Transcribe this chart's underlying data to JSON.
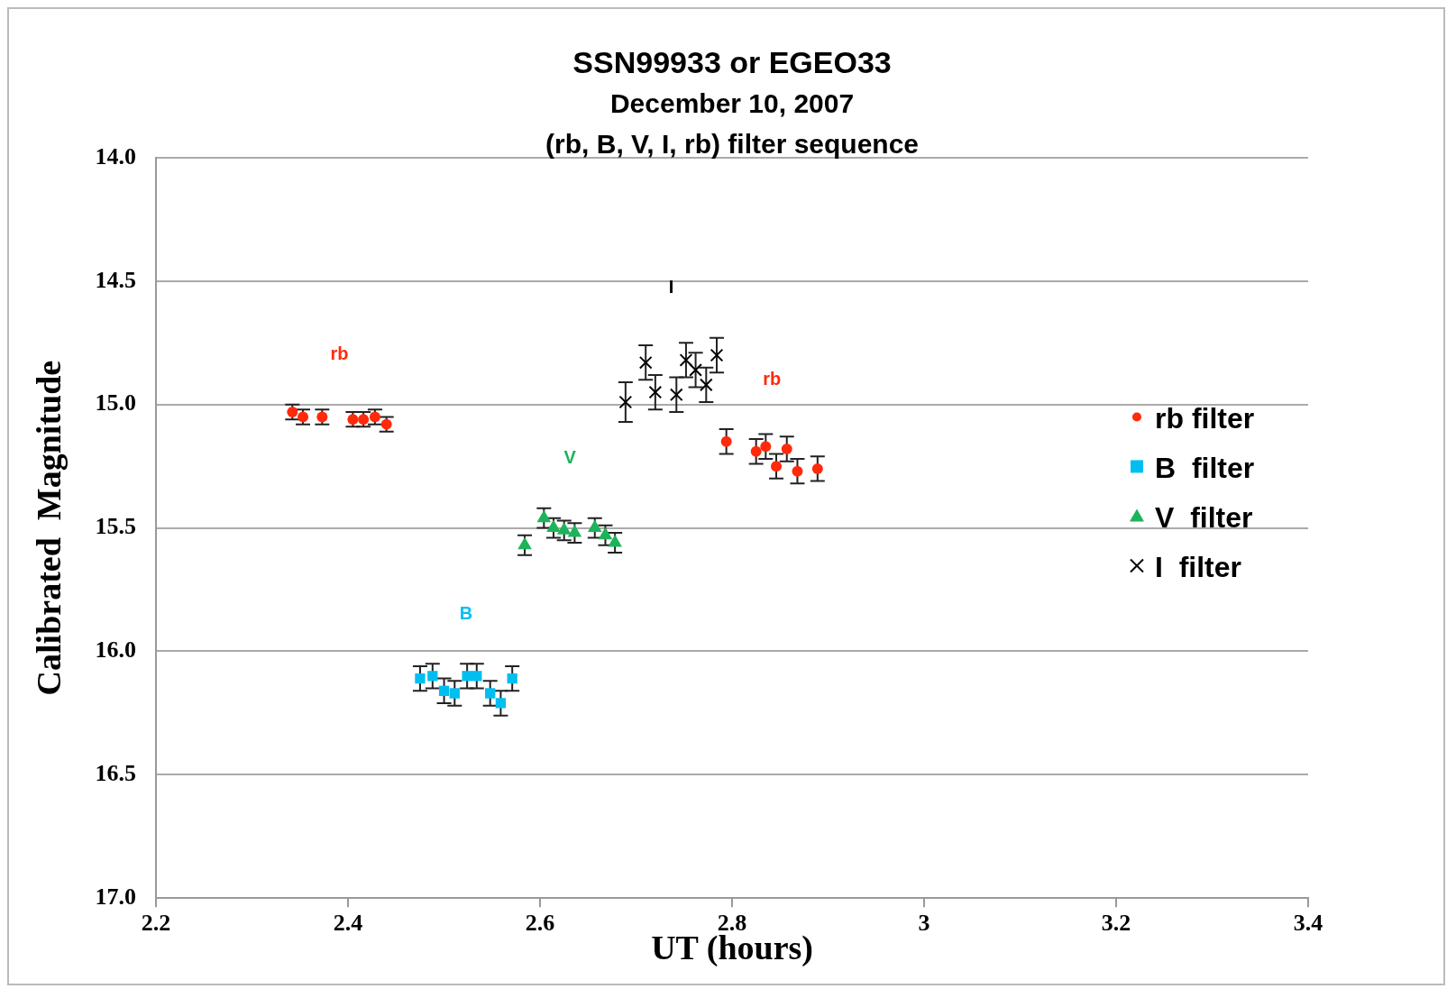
{
  "chart_data": {
    "type": "scatter",
    "title": "SSN99933 or EGEO33",
    "subtitle": "December 10, 2007",
    "xlabel": "UT (hours)",
    "ylabel": "Calibrated  Magnitude",
    "annotations": [
      "(rb, B, V, I, rb) filter sequence",
      "rb",
      "B",
      "V",
      "I",
      "rb"
    ],
    "series": [
      {
        "name": "rb filter",
        "color": "#ff2a0a",
        "marker": "circle",
        "x": [
          2.342,
          2.353,
          2.373,
          2.405,
          2.416,
          2.428,
          2.44,
          2.794,
          2.825,
          2.835,
          2.846,
          2.857,
          2.868,
          2.889
        ],
        "values": [
          15.03,
          15.05,
          15.05,
          15.06,
          15.06,
          15.05,
          15.08,
          15.15,
          15.19,
          15.17,
          15.25,
          15.18,
          15.27,
          15.26
        ],
        "errors": [
          0.03,
          0.03,
          0.03,
          0.03,
          0.03,
          0.03,
          0.03,
          0.05,
          0.05,
          0.05,
          0.05,
          0.05,
          0.05,
          0.05
        ]
      },
      {
        "name": "B  filter",
        "color": "#00bff0",
        "marker": "square",
        "x": [
          2.475,
          2.488,
          2.5,
          2.511,
          2.524,
          2.534,
          2.548,
          2.559,
          2.571
        ],
        "values": [
          16.11,
          16.1,
          16.16,
          16.17,
          16.1,
          16.1,
          16.17,
          16.21,
          16.11
        ],
        "errors": [
          0.05,
          0.05,
          0.05,
          0.05,
          0.05,
          0.05,
          0.05,
          0.05,
          0.05
        ]
      },
      {
        "name": "V  filter",
        "color": "#1db35a",
        "marker": "triangle",
        "x": [
          2.584,
          2.604,
          2.614,
          2.625,
          2.636,
          2.657,
          2.668,
          2.678
        ],
        "values": [
          15.57,
          15.46,
          15.5,
          15.51,
          15.52,
          15.5,
          15.53,
          15.56
        ],
        "errors": [
          0.04,
          0.04,
          0.04,
          0.04,
          0.04,
          0.04,
          0.04,
          0.04
        ]
      },
      {
        "name": "I  filter",
        "color": "#000000",
        "marker": "cross",
        "x": [
          2.689,
          2.71,
          2.72,
          2.742,
          2.752,
          2.762,
          2.773,
          2.784
        ],
        "values": [
          14.99,
          14.83,
          14.95,
          14.96,
          14.82,
          14.86,
          14.92,
          14.8
        ],
        "errors": [
          0.08,
          0.07,
          0.07,
          0.07,
          0.07,
          0.07,
          0.07,
          0.07
        ]
      }
    ],
    "xlim": [
      2.2,
      3.4
    ],
    "xticks": [
      2.2,
      2.4,
      2.6,
      2.8,
      3,
      3.2,
      3.4
    ],
    "ylim": [
      17.0,
      14.0
    ],
    "yticks": [
      {
        "value": 14,
        "label": "14.0"
      },
      {
        "value": 14.5,
        "label": "14.5"
      },
      {
        "value": 15,
        "label": "15.0"
      },
      {
        "value": 15.5,
        "label": "15.5"
      },
      {
        "value": 16,
        "label": "16.0"
      },
      {
        "value": 16.5,
        "label": "16.5"
      },
      {
        "value": 17,
        "label": "17.0"
      }
    ],
    "grid": "y",
    "legend": "right"
  }
}
